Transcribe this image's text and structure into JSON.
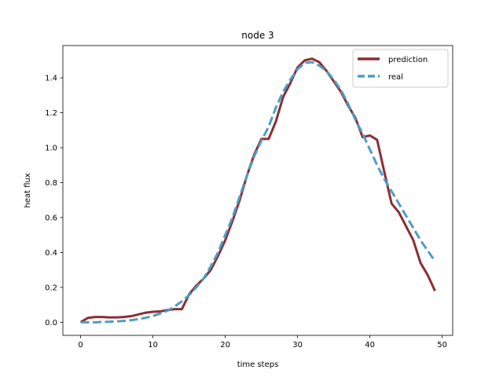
{
  "chart_data": {
    "type": "line",
    "title": "node 3",
    "xlabel": "time steps",
    "ylabel": "heat flux",
    "xlim": [
      -2.45,
      51.45
    ],
    "ylim": [
      -0.075,
      1.585
    ],
    "xticks": [
      0,
      10,
      20,
      30,
      40,
      50
    ],
    "yticks": [
      0.0,
      0.2,
      0.4,
      0.6,
      0.8,
      1.0,
      1.2,
      1.4
    ],
    "xtick_labels": [
      "0",
      "10",
      "20",
      "30",
      "40",
      "50"
    ],
    "ytick_labels": [
      "0.0",
      "0.2",
      "0.4",
      "0.6",
      "0.8",
      "1.0",
      "1.2",
      "1.4"
    ],
    "grid": false,
    "legend_position": "top-right",
    "x": [
      0,
      1,
      2,
      3,
      4,
      5,
      6,
      7,
      8,
      9,
      10,
      11,
      12,
      13,
      14,
      15,
      16,
      17,
      18,
      19,
      20,
      21,
      22,
      23,
      24,
      25,
      26,
      27,
      28,
      29,
      30,
      31,
      32,
      33,
      34,
      35,
      36,
      37,
      38,
      39,
      40,
      41,
      42,
      43,
      44,
      45,
      46,
      47,
      48,
      49
    ],
    "series": [
      {
        "name": "prediction",
        "color": "#8b2e35",
        "style": "solid",
        "values": [
          0.0,
          0.025,
          0.03,
          0.03,
          0.028,
          0.028,
          0.03,
          0.035,
          0.045,
          0.055,
          0.06,
          0.062,
          0.07,
          0.075,
          0.075,
          0.16,
          0.21,
          0.25,
          0.3,
          0.38,
          0.47,
          0.58,
          0.7,
          0.84,
          0.96,
          1.05,
          1.05,
          1.15,
          1.29,
          1.37,
          1.46,
          1.5,
          1.51,
          1.49,
          1.44,
          1.38,
          1.32,
          1.24,
          1.17,
          1.06,
          1.07,
          1.045,
          0.86,
          0.68,
          0.63,
          0.55,
          0.47,
          0.34,
          0.27,
          0.18
        ]
      },
      {
        "name": "real",
        "color": "#4d9dc4",
        "style": "dashed",
        "values": [
          0.0,
          0.0,
          0.0,
          0.002,
          0.003,
          0.005,
          0.008,
          0.012,
          0.018,
          0.026,
          0.036,
          0.05,
          0.066,
          0.09,
          0.12,
          0.155,
          0.2,
          0.25,
          0.32,
          0.4,
          0.5,
          0.6,
          0.72,
          0.84,
          0.95,
          1.04,
          1.12,
          1.23,
          1.32,
          1.39,
          1.45,
          1.485,
          1.49,
          1.47,
          1.44,
          1.39,
          1.33,
          1.25,
          1.16,
          1.08,
          0.99,
          0.9,
          0.82,
          0.75,
          0.68,
          0.61,
          0.54,
          0.47,
          0.41,
          0.35
        ]
      }
    ]
  }
}
